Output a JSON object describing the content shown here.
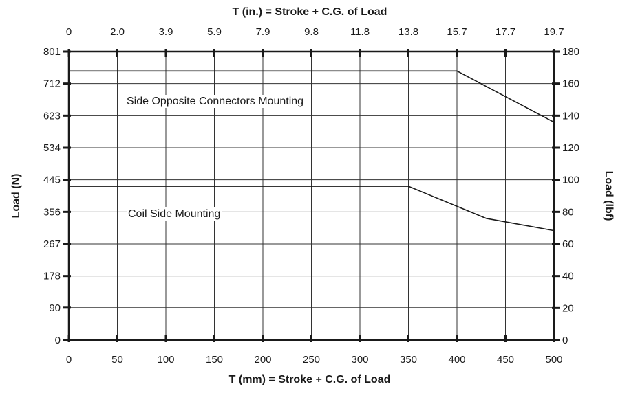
{
  "chart_data": {
    "type": "line",
    "title": "T (in.) = Stroke + C.G. of Load",
    "xlabel": "T (mm) = Stroke + C.G. of Load",
    "ylabel": "Load (N)",
    "ylabel_right": "Load (lbf)",
    "xlim": [
      0,
      500
    ],
    "ylim": [
      0,
      801
    ],
    "x_ticks": [
      0,
      50,
      100,
      150,
      200,
      250,
      300,
      350,
      400,
      450,
      500
    ],
    "x_tick_labels": [
      "0",
      "50",
      "100",
      "150",
      "200",
      "250",
      "300",
      "350",
      "400",
      "450",
      "500"
    ],
    "x_top_tick_labels": [
      "0",
      "2.0",
      "3.9",
      "5.9",
      "7.9",
      "9.8",
      "11.8",
      "13.8",
      "15.7",
      "17.7",
      "19.7"
    ],
    "y_ticks": [
      0,
      90,
      178,
      267,
      356,
      445,
      534,
      623,
      712,
      801
    ],
    "y_tick_labels": [
      "0",
      "90",
      "178",
      "267",
      "356",
      "445",
      "534",
      "623",
      "712",
      "801"
    ],
    "y_right_ticks": [
      0,
      20,
      40,
      60,
      80,
      100,
      120,
      140,
      160,
      180
    ],
    "y_right_tick_labels": [
      "0",
      "20",
      "40",
      "60",
      "80",
      "100",
      "120",
      "140",
      "160",
      "180"
    ],
    "y_right_lim": [
      0,
      180
    ],
    "grid": true,
    "series": [
      {
        "name": "Side Opposite Connectors Mounting",
        "x": [
          0,
          400,
          500
        ],
        "y": [
          747,
          747,
          605
        ]
      },
      {
        "name": "Coil Side Mounting",
        "x": [
          0,
          350,
          430,
          500
        ],
        "y": [
          427,
          427,
          338,
          304
        ]
      }
    ],
    "line_color": "#1a1a1a",
    "grid_color": "#333333"
  }
}
